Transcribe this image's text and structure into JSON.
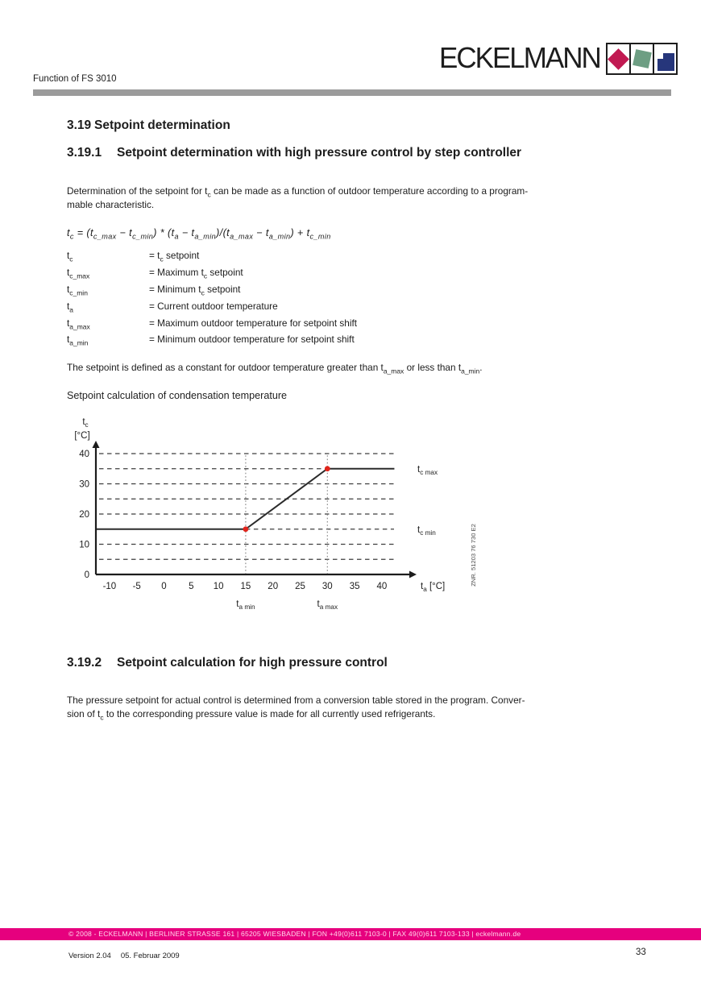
{
  "header": {
    "doc_context": "Function of FS 3010",
    "logo_text": "ECKELMANN"
  },
  "colors": {
    "brand_magenta": "#e6007e",
    "logo_crimson": "#c11a52",
    "logo_green": "#6d9e83",
    "logo_navy": "#26367b",
    "rule_gray": "#9b9b9b",
    "marker_red": "#e0251c"
  },
  "sections": {
    "s319": {
      "number": "3.19",
      "title": "Setpoint determination"
    },
    "s3191": {
      "number": "3.19.1",
      "title": "Setpoint determination with high pressure control by step controller"
    },
    "s3192": {
      "number": "3.19.2",
      "title": "Setpoint calculation for high pressure control"
    }
  },
  "content": {
    "p1_tokens": [
      {
        "t": "Determination of the setpoint for "
      },
      {
        "t": "t",
        "s": "c"
      },
      {
        "t": " can be made as a function of outdoor temperature according to a program-"
      },
      {
        "br": true
      },
      {
        "t": "mable characteristic."
      }
    ],
    "formula_tokens": [
      {
        "t": "t",
        "s": "c"
      },
      {
        "t": " = ("
      },
      {
        "t": "t",
        "s": "c_max"
      },
      {
        "t": " − "
      },
      {
        "t": "t",
        "s": "c_min"
      },
      {
        "t": ") * ("
      },
      {
        "t": "t",
        "s": "a"
      },
      {
        "t": " − "
      },
      {
        "t": "t",
        "s": "a_min"
      },
      {
        "t": ")/("
      },
      {
        "t": "t",
        "s": "a_max"
      },
      {
        "t": " − "
      },
      {
        "t": "t",
        "s": "a_min"
      },
      {
        "t": ") + "
      },
      {
        "t": "t",
        "s": "c_min"
      }
    ],
    "definitions": [
      {
        "term": [
          {
            "t": "t",
            "s": "c"
          }
        ],
        "def": [
          {
            "t": "= "
          },
          {
            "t": "t",
            "s": "c"
          },
          {
            "t": " setpoint"
          }
        ]
      },
      {
        "term": [
          {
            "t": "t",
            "s": "c_max"
          }
        ],
        "def": [
          {
            "t": "= Maximum "
          },
          {
            "t": "t",
            "s": "c"
          },
          {
            "t": " setpoint"
          }
        ]
      },
      {
        "term": [
          {
            "t": "t",
            "s": "c_min"
          }
        ],
        "def": [
          {
            "t": "= Minimum "
          },
          {
            "t": "t",
            "s": "c"
          },
          {
            "t": " setpoint"
          }
        ]
      },
      {
        "term": [
          {
            "t": "t",
            "s": "a"
          }
        ],
        "def": [
          {
            "t": "= Current outdoor temperature"
          }
        ]
      },
      {
        "term": [
          {
            "t": "t",
            "s": "a_max"
          }
        ],
        "def": [
          {
            "t": "= Maximum outdoor temperature for setpoint shift"
          }
        ]
      },
      {
        "term": [
          {
            "t": "t",
            "s": "a_min"
          }
        ],
        "def": [
          {
            "t": "= Minimum outdoor temperature for setpoint shift"
          }
        ]
      }
    ],
    "note_tokens": [
      {
        "t": "The setpoint is defined as a constant for outdoor temperature greater than "
      },
      {
        "t": "t",
        "s": "a_max"
      },
      {
        "t": " or less than "
      },
      {
        "t": "t",
        "s": "a_min"
      },
      {
        "t": "."
      }
    ],
    "figure_caption": "Setpoint calculation of condensation temperature",
    "p2_tokens": [
      {
        "t": "The pressure setpoint for actual control is determined from a conversion table stored in the program. Conver-"
      },
      {
        "br": true
      },
      {
        "t": "sion of "
      },
      {
        "t": "t",
        "s": "c"
      },
      {
        "t": " to the corresponding pressure value is made for all currently used refrigerants."
      }
    ]
  },
  "chart_data": {
    "type": "line",
    "title": "Setpoint calculation of condensation temperature",
    "xlabel_tokens": [
      {
        "t": "t",
        "s": "a"
      },
      {
        "t": "  [°C]"
      }
    ],
    "ylabel_tokens": [
      {
        "t": "t",
        "s": "c"
      }
    ],
    "ylabel_unit": "[°C]",
    "xlim": [
      -12.5,
      43.5
    ],
    "ylim": [
      0,
      44
    ],
    "xticks": [
      -10,
      -5,
      0,
      5,
      10,
      15,
      20,
      25,
      30,
      35,
      40
    ],
    "yticks": [
      0,
      10,
      20,
      30,
      40
    ],
    "gridlines_y": [
      5,
      10,
      15,
      20,
      25,
      30,
      35,
      40
    ],
    "grid_dashed": true,
    "ta_min": 15,
    "ta_max": 30,
    "tc_min": 15,
    "tc_max": 35,
    "vlines_x": [
      15,
      30
    ],
    "vline_top": 40,
    "series": [
      {
        "name": "tc setpoint characteristic",
        "points": [
          [
            -12.5,
            15
          ],
          [
            15,
            15
          ],
          [
            30,
            35
          ],
          [
            42.3,
            35
          ]
        ],
        "color": "#2b2b2b"
      }
    ],
    "markers": {
      "points": [
        [
          15,
          15
        ],
        [
          30,
          35
        ]
      ],
      "color": "#e0251c"
    },
    "right_labels": [
      {
        "tokens": [
          {
            "t": "t",
            "s": "c max"
          }
        ],
        "y": 35
      },
      {
        "tokens": [
          {
            "t": "t",
            "s": "c min"
          }
        ],
        "y": 15
      }
    ],
    "bottom_labels": [
      {
        "tokens": [
          {
            "t": "t",
            "s": "a min"
          }
        ],
        "x": 15
      },
      {
        "tokens": [
          {
            "t": "t",
            "s": "a max"
          }
        ],
        "x": 30
      }
    ],
    "side_note": "ZNR. 51203 76 730 E2"
  },
  "footer": {
    "bar_text": "© 2008 - ECKELMANN | BERLINER STRASSE 161 | 65205 WIESBADEN | FON +49(0)611 7103-0 | FAX 49(0)611 7103-133 | eckelmann.de",
    "version_label": "Version 2.04",
    "version_date": "05. Februar 2009",
    "page_number": "33"
  }
}
